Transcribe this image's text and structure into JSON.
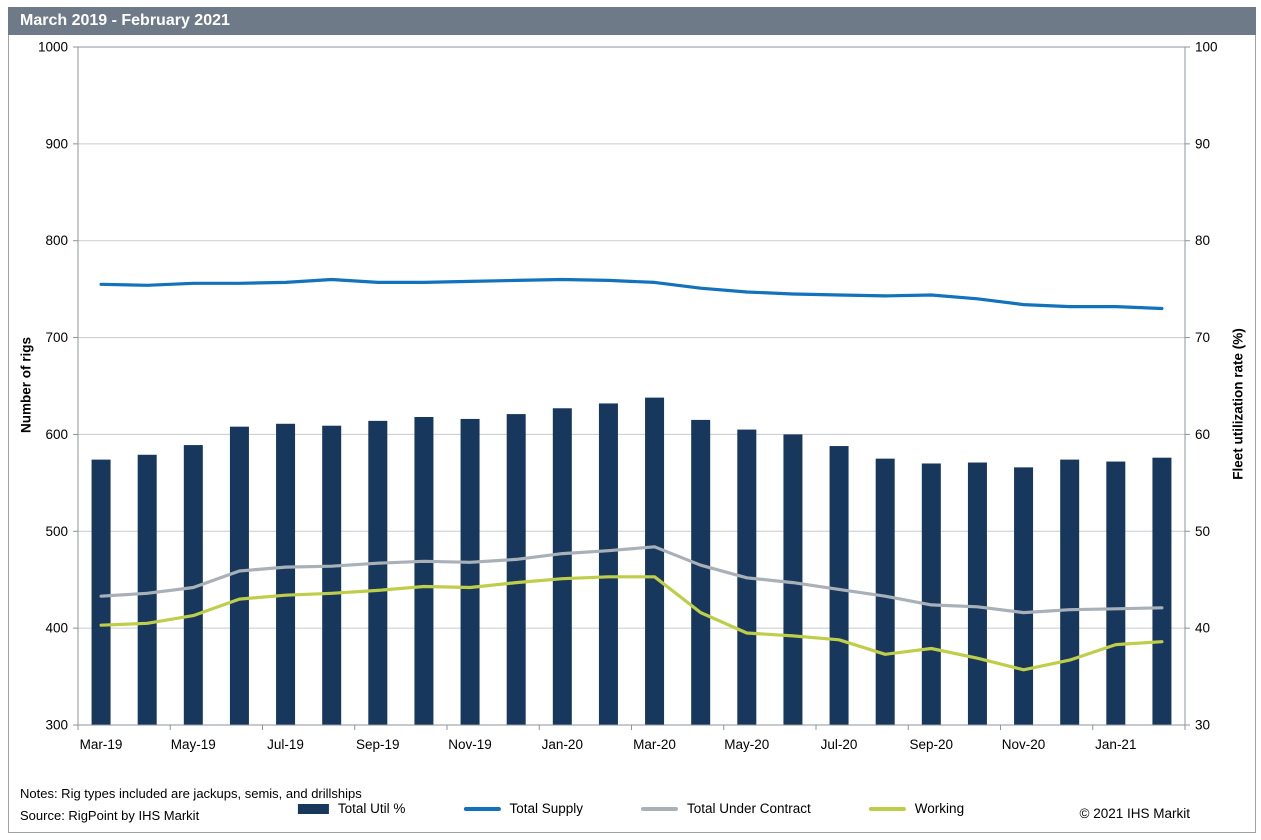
{
  "window": {
    "title": "March 2019 - February 2021"
  },
  "footer": {
    "notes": "Notes: Rig types included are jackups, semis, and drillships",
    "source": "Source: RigPoint by IHS Markit",
    "copyright": "© 2021 IHS Markit"
  },
  "colors": {
    "title_bar_bg": "#6f7a88",
    "bar_navy": "#17375c",
    "supply_blue": "#1272bc",
    "contract_gray": "#a9b1b8",
    "working_green": "#bfce4a",
    "gridline": "#c7cbd0",
    "plot_border": "#8c949c"
  },
  "legend": [
    {
      "label": "Total Util %",
      "swatch": "bar",
      "color": "#17375c"
    },
    {
      "label": "Total Supply",
      "swatch": "line",
      "color": "#1272bc"
    },
    {
      "label": "Total Under Contract",
      "swatch": "line",
      "color": "#a9b1b8"
    },
    {
      "label": "Working",
      "swatch": "line",
      "color": "#bfce4a"
    }
  ],
  "chart_data": {
    "type": "bar+line combo",
    "title": "March 2019 - February 2021",
    "categories": [
      "Mar-19",
      "Apr-19",
      "May-19",
      "Jun-19",
      "Jul-19",
      "Aug-19",
      "Sep-19",
      "Oct-19",
      "Nov-19",
      "Dec-19",
      "Jan-20",
      "Feb-20",
      "Mar-20",
      "Apr-20",
      "May-20",
      "Jun-20",
      "Jul-20",
      "Aug-20",
      "Sep-20",
      "Oct-20",
      "Nov-20",
      "Dec-20",
      "Jan-21",
      "Feb-21"
    ],
    "x_tick_labels": [
      "Mar-19",
      "May-19",
      "Jul-19",
      "Sep-19",
      "Nov-19",
      "Jan-20",
      "Mar-20",
      "May-20",
      "Jul-20",
      "Sep-20",
      "Nov-20",
      "Jan-21"
    ],
    "left_axis": {
      "label": "Number of rigs",
      "min": 300,
      "max": 1000,
      "step": 100
    },
    "right_axis": {
      "label": "Fleet utilization rate (%)",
      "min": 30,
      "max": 100,
      "step": 10
    },
    "grid": true,
    "legend_position": "bottom",
    "series": [
      {
        "name": "Total Util %",
        "type": "bar",
        "axis": "right",
        "color": "#17375c",
        "values": [
          57.4,
          57.9,
          58.9,
          60.8,
          61.1,
          60.9,
          61.4,
          61.8,
          61.6,
          62.1,
          62.7,
          63.2,
          63.8,
          61.5,
          60.5,
          60.0,
          58.8,
          57.5,
          57.0,
          57.1,
          56.6,
          57.4,
          57.2,
          57.6
        ]
      },
      {
        "name": "Total Supply",
        "type": "line",
        "axis": "left",
        "color": "#1272bc",
        "values": [
          755,
          754,
          756,
          756,
          757,
          760,
          757,
          757,
          758,
          759,
          760,
          759,
          757,
          751,
          747,
          745,
          744,
          743,
          744,
          740,
          734,
          732,
          732,
          730
        ]
      },
      {
        "name": "Total Under Contract",
        "type": "line",
        "axis": "left",
        "color": "#a9b1b8",
        "values": [
          433,
          436,
          442,
          459,
          463,
          464,
          467,
          469,
          468,
          471,
          477,
          480,
          484,
          465,
          452,
          447,
          440,
          433,
          424,
          422,
          416,
          419,
          420,
          421
        ]
      },
      {
        "name": "Working",
        "type": "line",
        "axis": "left",
        "color": "#bfce4a",
        "values": [
          403,
          405,
          413,
          430,
          434,
          436,
          439,
          443,
          442,
          447,
          451,
          453,
          453,
          416,
          395,
          392,
          388,
          373,
          379,
          369,
          357,
          367,
          383,
          386
        ]
      }
    ]
  }
}
